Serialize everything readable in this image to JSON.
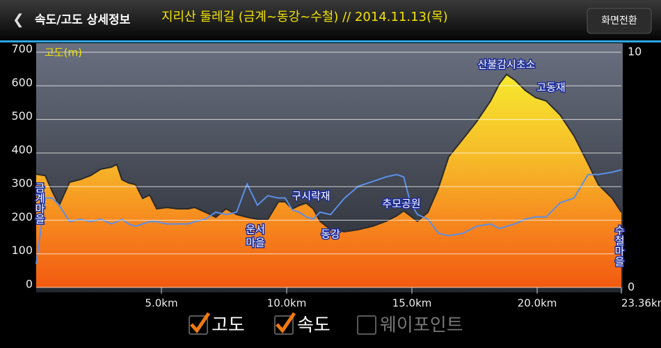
{
  "header": {
    "title": "속도/고도 상세정보",
    "subtitle": "지리산 둘레길 (금계~동강~수철) // 2014.11.13(목)",
    "button": "화면전환"
  },
  "chart_data": {
    "type": "area",
    "y_label": "고도(m)",
    "x": [
      0,
      0.36,
      0.64,
      0.92,
      1.33,
      1.75,
      2.17,
      2.58,
      3.0,
      3.22,
      3.42,
      3.69,
      3.97,
      4.25,
      4.53,
      4.81,
      5.22,
      5.64,
      6.06,
      6.33,
      6.75,
      7.17,
      7.58,
      8.0,
      8.42,
      8.83,
      9.25,
      9.67,
      9.94,
      10.22,
      10.5,
      10.78,
      11.06,
      11.33,
      11.75,
      12.31,
      12.86,
      13.42,
      13.97,
      14.39,
      14.67,
      14.94,
      15.22,
      15.64,
      16.06,
      16.47,
      17.03,
      17.58,
      18.14,
      18.5,
      18.78,
      19.11,
      19.53,
      19.94,
      20.36,
      20.92,
      21.47,
      22.03,
      22.44,
      23.0,
      23.36
    ],
    "series": [
      {
        "name": "고도",
        "checked": true,
        "color": "#f2e62a",
        "values": [
          337,
          333,
          286,
          244,
          313,
          321,
          333,
          352,
          358,
          366,
          321,
          311,
          306,
          265,
          275,
          234,
          238,
          234,
          234,
          238,
          224,
          209,
          234,
          217,
          209,
          203,
          203,
          255,
          255,
          234,
          244,
          251,
          234,
          197,
          172,
          166,
          172,
          182,
          197,
          213,
          228,
          213,
          197,
          224,
          296,
          389,
          441,
          493,
          555,
          607,
          634,
          617,
          586,
          565,
          555,
          513,
          451,
          369,
          306,
          265,
          224
        ]
      },
      {
        "name": "속도",
        "checked": true,
        "axis": "y2",
        "color": "#5b8fe8",
        "values": [
          1.0,
          3.8,
          3.8,
          3.5,
          2.8,
          2.9,
          2.8,
          2.9,
          2.7,
          2.8,
          2.9,
          2.7,
          2.6,
          2.7,
          2.8,
          2.8,
          2.7,
          2.7,
          2.7,
          2.8,
          2.9,
          3.2,
          3.1,
          3.2,
          4.4,
          3.5,
          3.9,
          3.8,
          3.8,
          3.3,
          3.2,
          3.0,
          2.9,
          3.2,
          3.1,
          3.8,
          4.3,
          4.5,
          4.7,
          4.8,
          4.7,
          3.6,
          3.1,
          2.9,
          2.3,
          2.2,
          2.3,
          2.6,
          2.7,
          2.5,
          2.6,
          2.7,
          2.9,
          3.0,
          3.0,
          3.6,
          3.8,
          4.8,
          4.8,
          4.9,
          5.0
        ]
      }
    ],
    "xlim": [
      0,
      23.36
    ],
    "xticks": [
      {
        "value": 5,
        "label": "5.0km"
      },
      {
        "value": 10,
        "label": "10.0km"
      },
      {
        "value": 15,
        "label": "15.0km"
      },
      {
        "value": 20,
        "label": "20.0km"
      },
      {
        "value": 23.36,
        "label": "23.36km"
      }
    ],
    "ylim": [
      0,
      700
    ],
    "yticks": [
      0,
      100,
      200,
      300,
      400,
      500,
      600,
      700
    ],
    "y2lim": [
      0,
      10
    ],
    "y2ticks": [
      0,
      10
    ],
    "grid": true,
    "annotations": [
      {
        "lines": [
          "금계마을"
        ],
        "vertical": true
      },
      {
        "lines": [
          "운서",
          "마을"
        ]
      },
      {
        "lines": [
          "구시락재"
        ]
      },
      {
        "lines": [
          "동강"
        ]
      },
      {
        "lines": [
          "추모공원"
        ]
      },
      {
        "lines": [
          "산불감시초소"
        ]
      },
      {
        "lines": [
          "고동재"
        ]
      },
      {
        "lines": [
          "수철마을"
        ],
        "vertical": true
      }
    ]
  },
  "toggles": [
    {
      "label": "웨이포인트",
      "checked": false
    }
  ]
}
